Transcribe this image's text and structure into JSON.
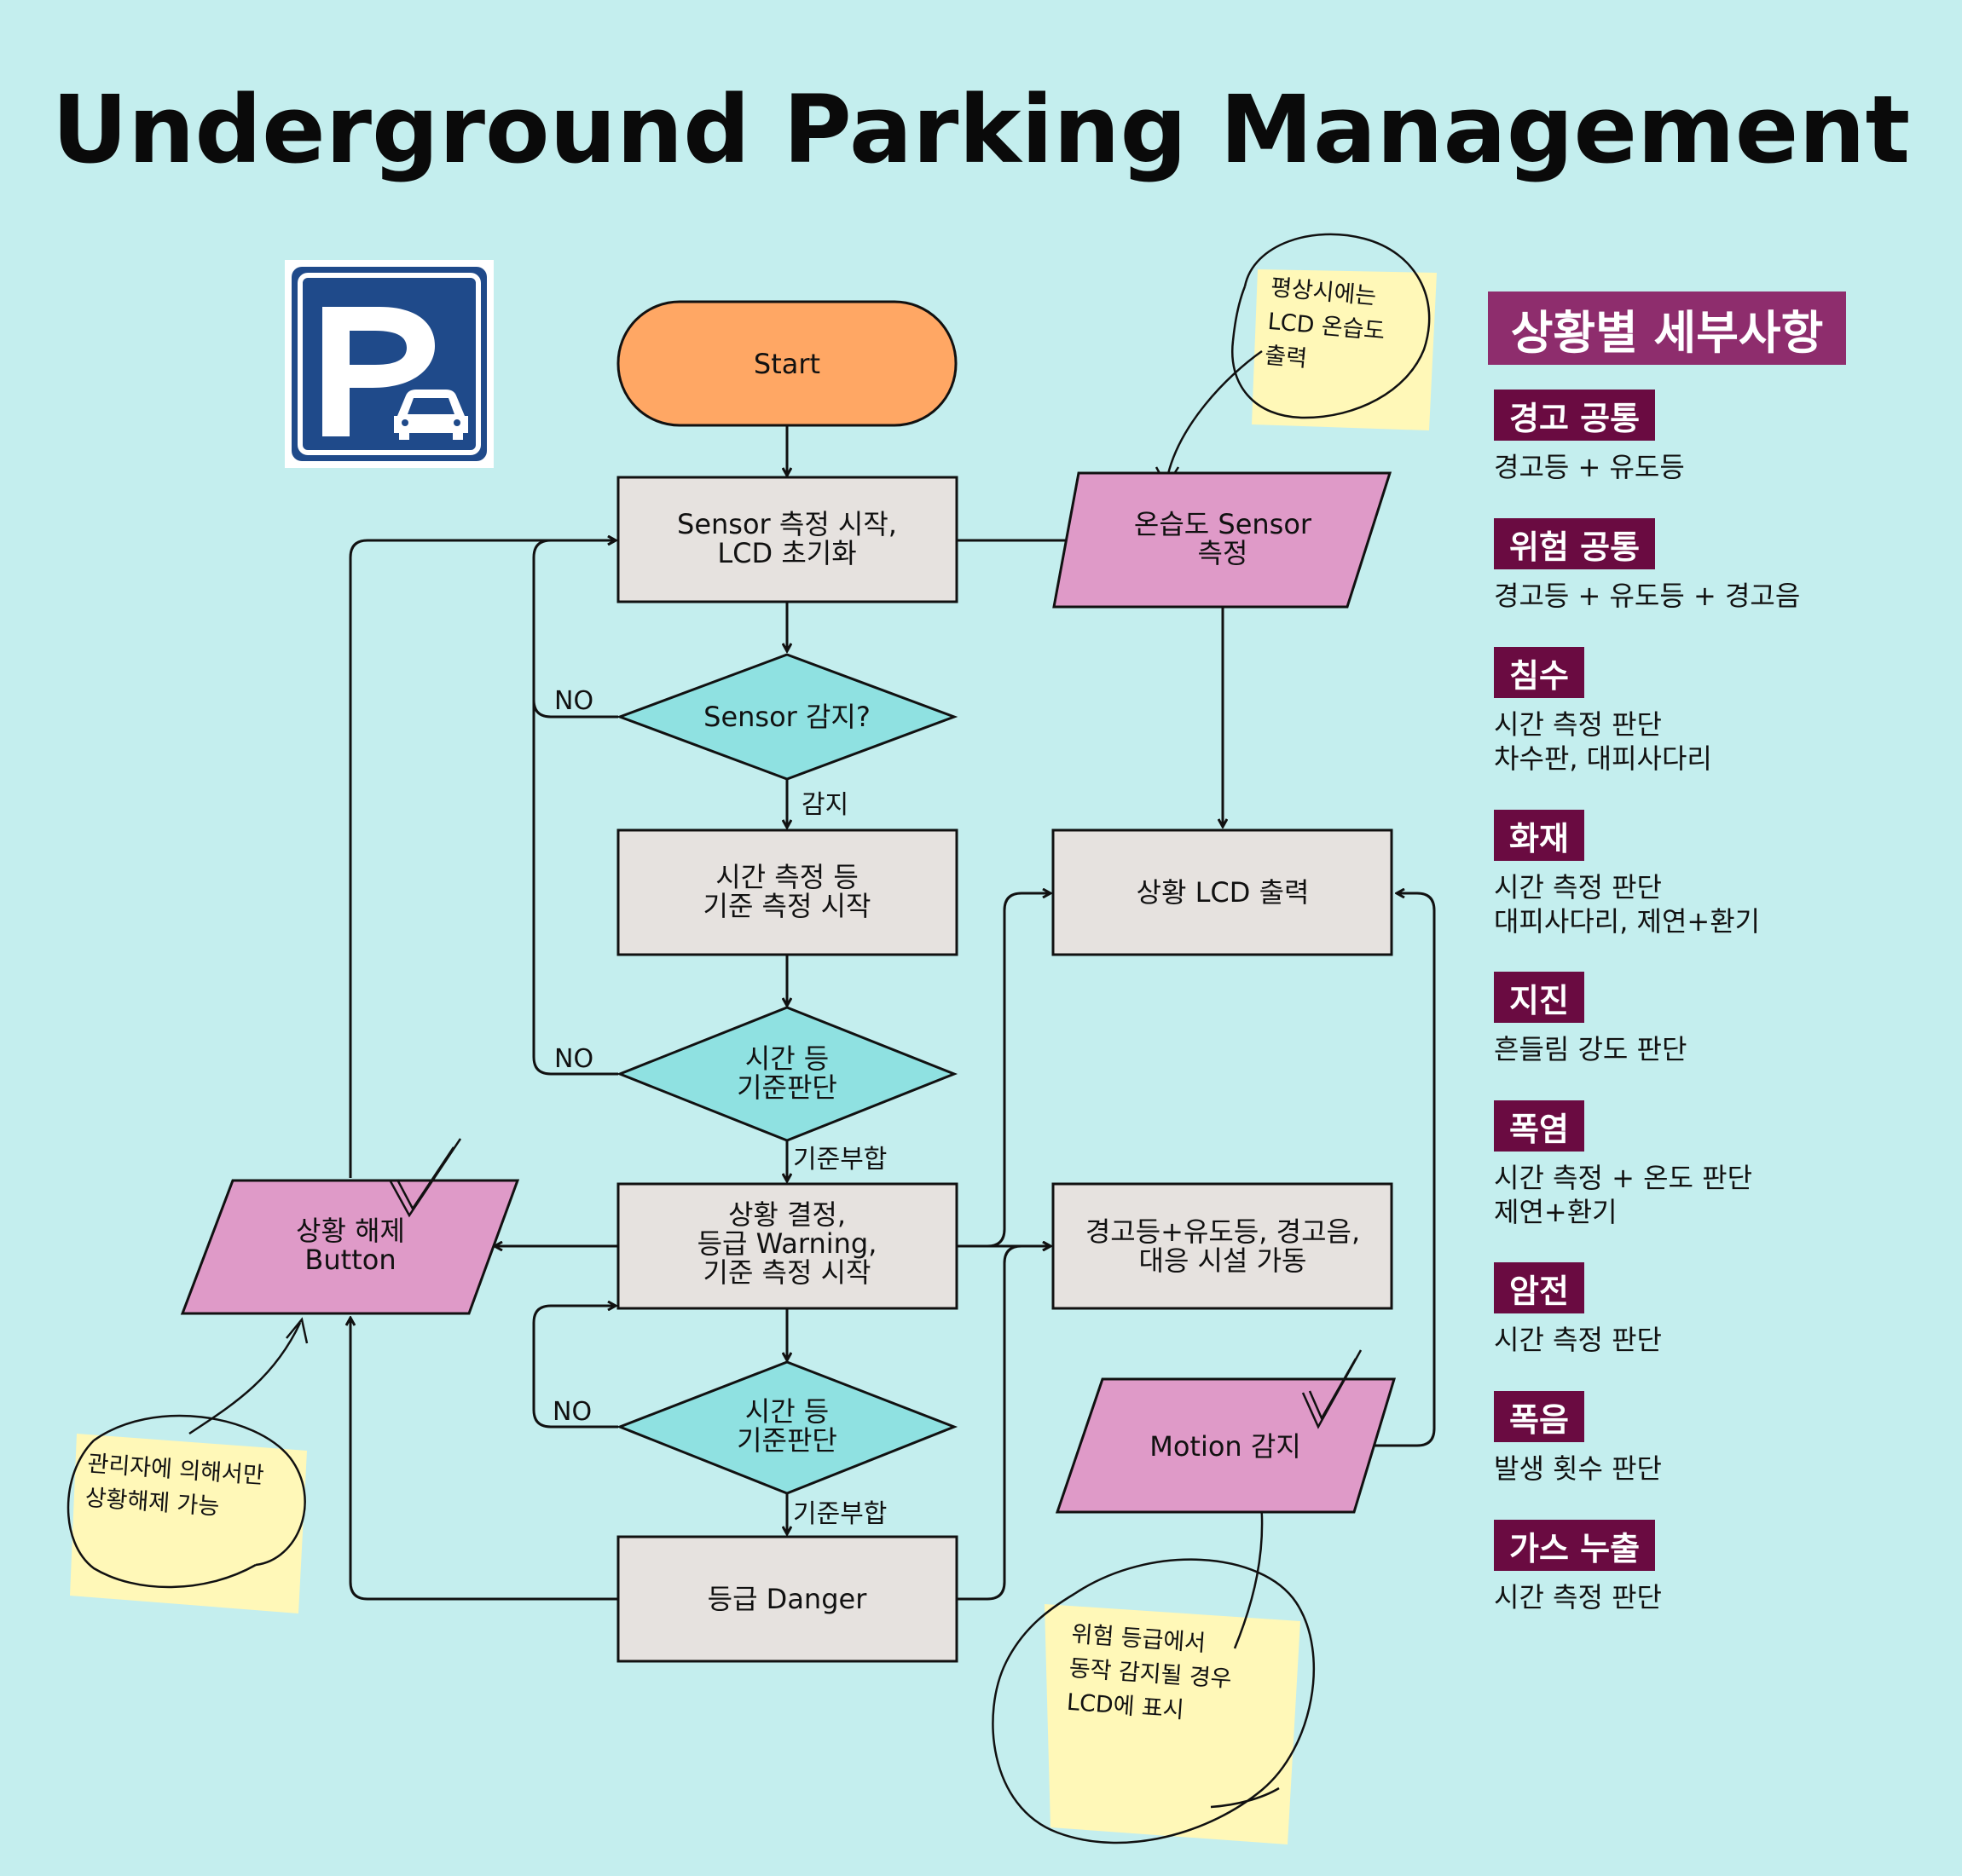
{
  "title": "Underground Parking Management",
  "flowchart": {
    "start": "Start",
    "sensor_init": [
      "Sensor 측정 시작,",
      "LCD 초기화"
    ],
    "thermo_sensor": [
      "온습도 Sensor",
      "측정"
    ],
    "sensor_detect": "Sensor 감지?",
    "time_measure": [
      "시간 측정 등",
      "기준 측정 시작"
    ],
    "criteria1": [
      "시간 등",
      "기준판단"
    ],
    "decide_level": [
      "상황 결정,",
      "등급 Warning,",
      "기준 측정 시작"
    ],
    "criteria2": [
      "시간 등",
      "기준판단"
    ],
    "danger": "등급 Danger",
    "lcd_output": "상황 LCD 출력",
    "alarm": [
      "경고등+유도등, 경고음,",
      "대응 시설 가동"
    ],
    "motion": "Motion 감지",
    "release": [
      "상황 해제",
      "Button"
    ],
    "label_no": "NO",
    "label_detected": "감지",
    "label_match": "기준부합"
  },
  "notes": {
    "normal_lcd": [
      "평상시에는",
      "LCD 온습도",
      "출력"
    ],
    "admin_release": [
      "관리자에 의해서만",
      "상황해제 가능"
    ],
    "motion_danger": [
      "위험 등급에서",
      "동작 감지될 경우",
      "LCD에 표시"
    ]
  },
  "legend": {
    "heading": "상황별 세부사항",
    "items": [
      {
        "name": "경고 공통",
        "desc": [
          "경고등 + 유도등"
        ]
      },
      {
        "name": "위험 공통",
        "desc": [
          "경고등 + 유도등 + 경고음"
        ]
      },
      {
        "name": "침수",
        "desc": [
          "시간 측정 판단",
          "차수판, 대피사다리"
        ]
      },
      {
        "name": "화재",
        "desc": [
          "시간 측정 판단",
          "대피사다리, 제연+환기"
        ]
      },
      {
        "name": "지진",
        "desc": [
          "흔들림 강도 판단"
        ]
      },
      {
        "name": "폭염",
        "desc": [
          "시간 측정 + 온도 판단",
          "제연+환기"
        ]
      },
      {
        "name": "암전",
        "desc": [
          "시간 측정 판단"
        ]
      },
      {
        "name": "폭음",
        "desc": [
          "발생 횟수 판단"
        ]
      },
      {
        "name": "가스 누출",
        "desc": [
          "시간 측정 판단"
        ]
      }
    ]
  },
  "colors": {
    "background": "#c4eeee",
    "start": "#ffa764",
    "process": "#e6e2df",
    "decision": "#8fe1e1",
    "io": "#df9ac8",
    "sticky": "#fff8b8",
    "legend_heading": "#8e2d6d",
    "legend_item": "#6a0b41",
    "parking_sign": "#1f4a8a"
  },
  "icons": [
    "parking-sign-icon",
    "car-icon",
    "checkmark-icon"
  ]
}
